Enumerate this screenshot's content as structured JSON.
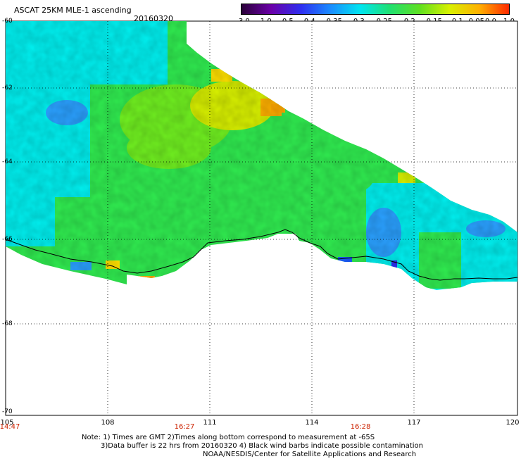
{
  "header": {
    "title": "ASCAT 25KM MLE-1 ascending",
    "date": "20160320"
  },
  "colorbar": {
    "colors": [
      "#2a0038",
      "#6a00a8",
      "#2e2ef0",
      "#1a8cff",
      "#00e5f0",
      "#20e070",
      "#60e020",
      "#d8f000",
      "#ffb000",
      "#ff2800"
    ],
    "labels": [
      "-3.0",
      "-1.0",
      "-0.5",
      "-0.4",
      "-0.35",
      "-0.3",
      "-0.25",
      "-0.2",
      "-0.15",
      "-0.1",
      "-0.05",
      "0.0",
      "1.0"
    ]
  },
  "map": {
    "x_ticks": [
      "105",
      "108",
      "111",
      "114",
      "117",
      "120"
    ],
    "y_ticks": [
      "-60",
      "-62",
      "-64",
      "-66",
      "-68",
      "-70"
    ],
    "times": [
      "14:47",
      "16:27",
      "16:28"
    ],
    "field_colors": {
      "cyan": "#00f0f0",
      "green": "#30ec50",
      "lime": "#70f020",
      "yellow": "#e4f000",
      "orange": "#ffa800",
      "blue": "#2aa0ff"
    }
  },
  "notes": [
    "Note: 1) Times are GMT 2)Times along bottom correspond to measurement at -65S",
    "3)Data buffer is 22 hrs from 20160320 4) Black wind barbs indicate possible contamination",
    "NOAA/NESDIS/Center for Satellite Applications and Research"
  ]
}
